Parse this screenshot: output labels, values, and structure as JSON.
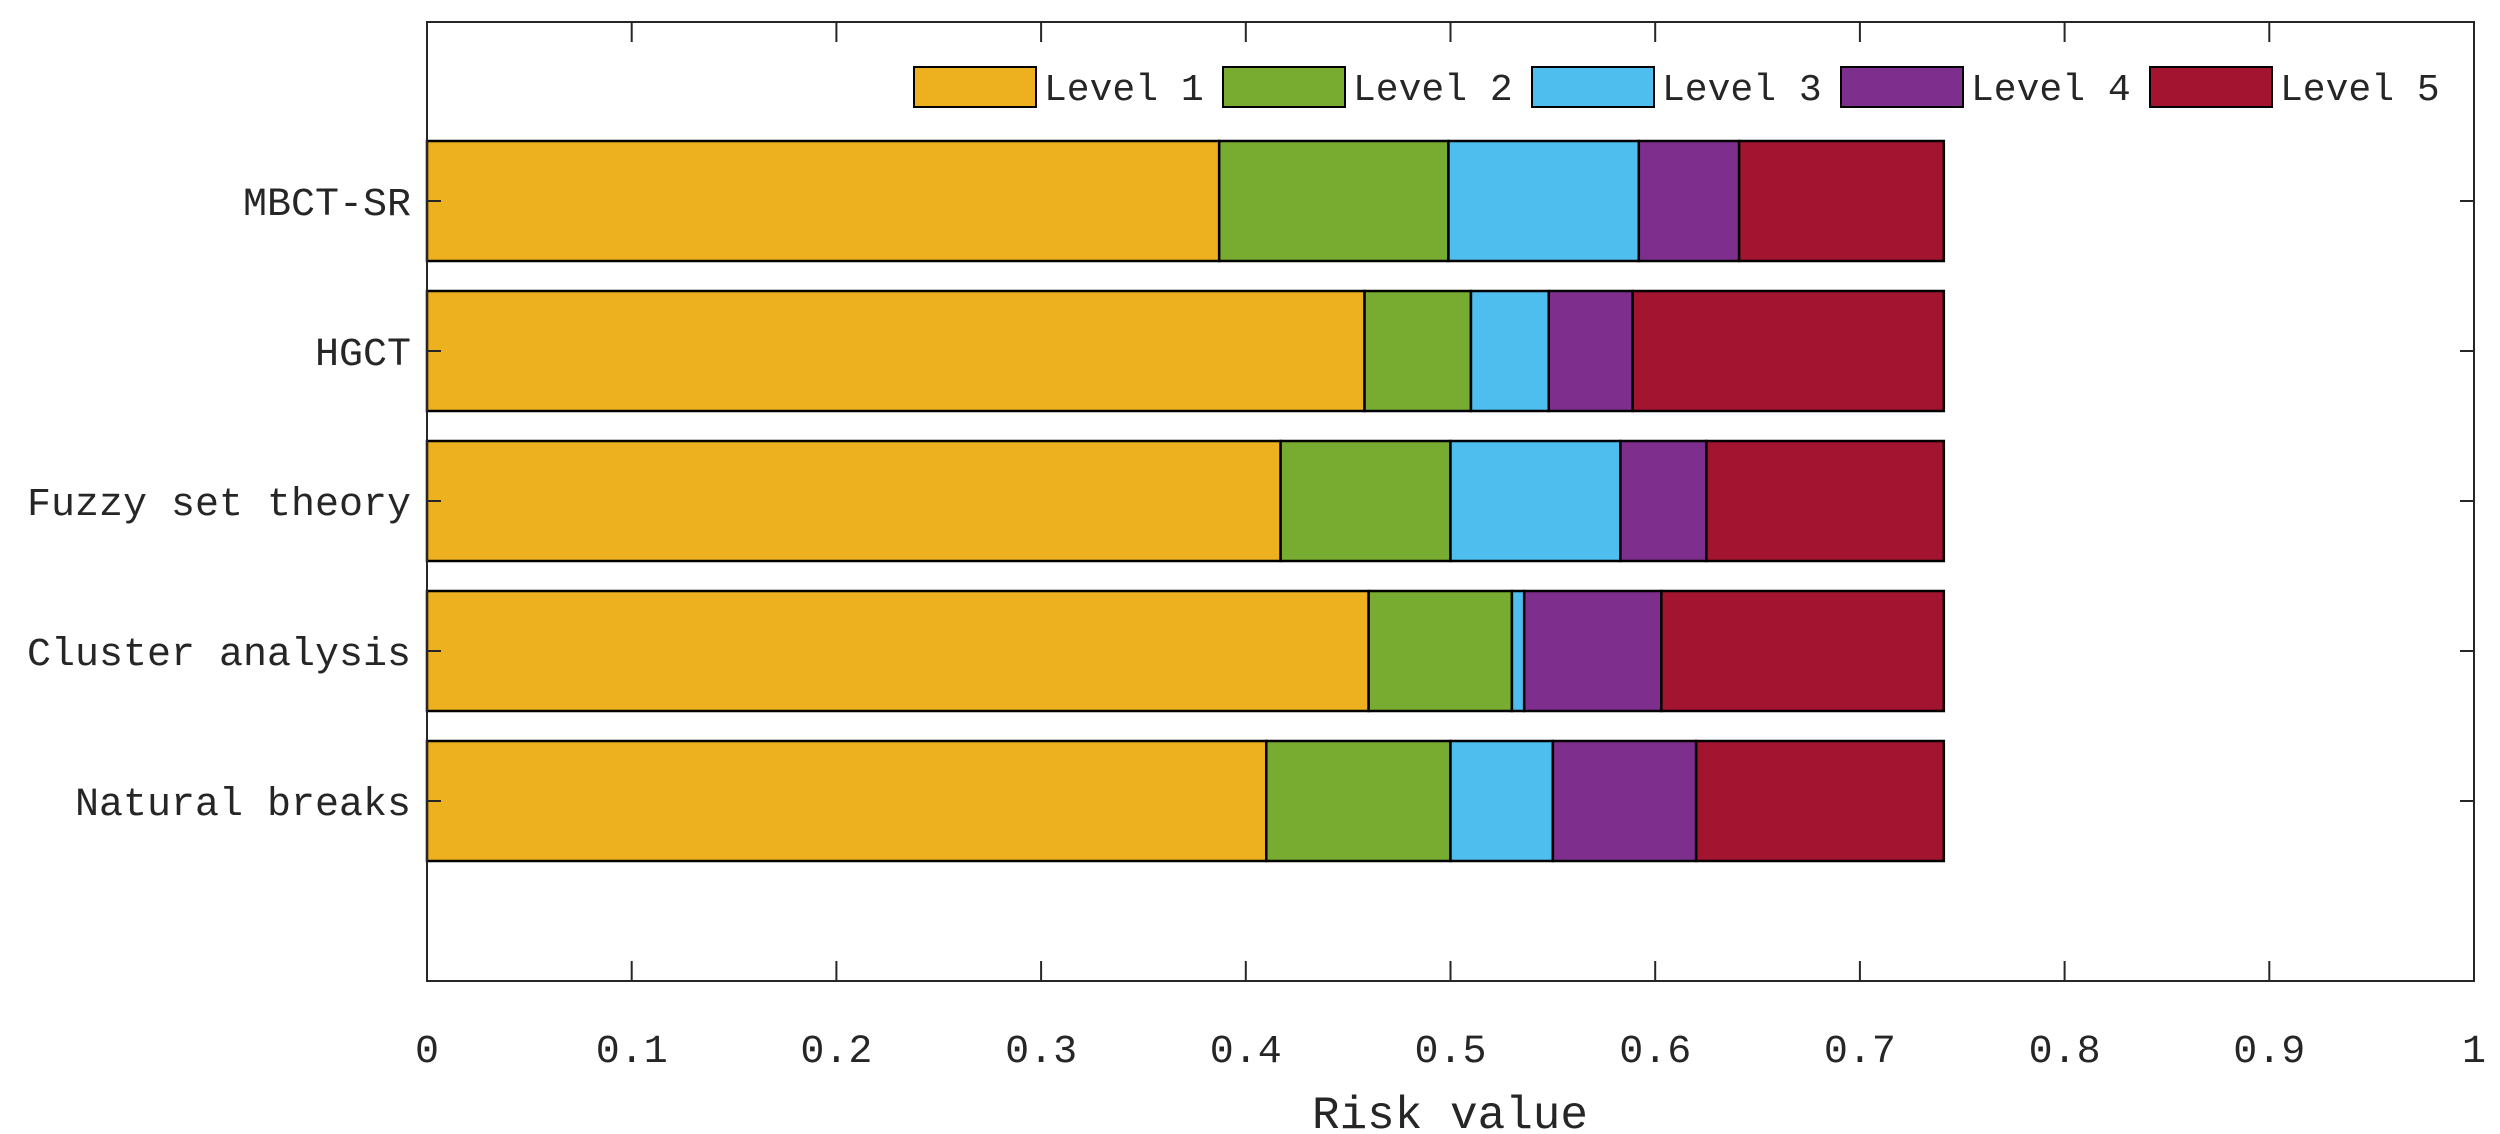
{
  "chart_data": {
    "type": "bar",
    "orientation": "horizontal",
    "stacked": true,
    "title": "",
    "xlabel": "Risk value",
    "ylabel": "",
    "xlim": [
      0,
      1
    ],
    "xticks": [
      "0",
      "0.1",
      "0.2",
      "0.3",
      "0.4",
      "0.5",
      "0.6",
      "0.7",
      "0.8",
      "0.9",
      "1"
    ],
    "grid": false,
    "legend_position": "top-right",
    "categories": [
      "MBCT-SR",
      "HGCT",
      "Fuzzy set theory",
      "Cluster analysis",
      "Natural breaks"
    ],
    "series": [
      {
        "name": "Level 1",
        "color": "#EDB120",
        "values": [
          0.387,
          0.458,
          0.417,
          0.46,
          0.41
        ]
      },
      {
        "name": "Level 2",
        "color": "#77AC30",
        "values": [
          0.112,
          0.052,
          0.083,
          0.07,
          0.09
        ]
      },
      {
        "name": "Level 3",
        "color": "#4DBEEE",
        "values": [
          0.093,
          0.038,
          0.083,
          0.006,
          0.05
        ]
      },
      {
        "name": "Level 4",
        "color": "#7E2F8E",
        "values": [
          0.049,
          0.041,
          0.042,
          0.067,
          0.07
        ]
      },
      {
        "name": "Level 5",
        "color": "#A2142F",
        "values": [
          0.1,
          0.152,
          0.116,
          0.138,
          0.121
        ]
      }
    ]
  }
}
